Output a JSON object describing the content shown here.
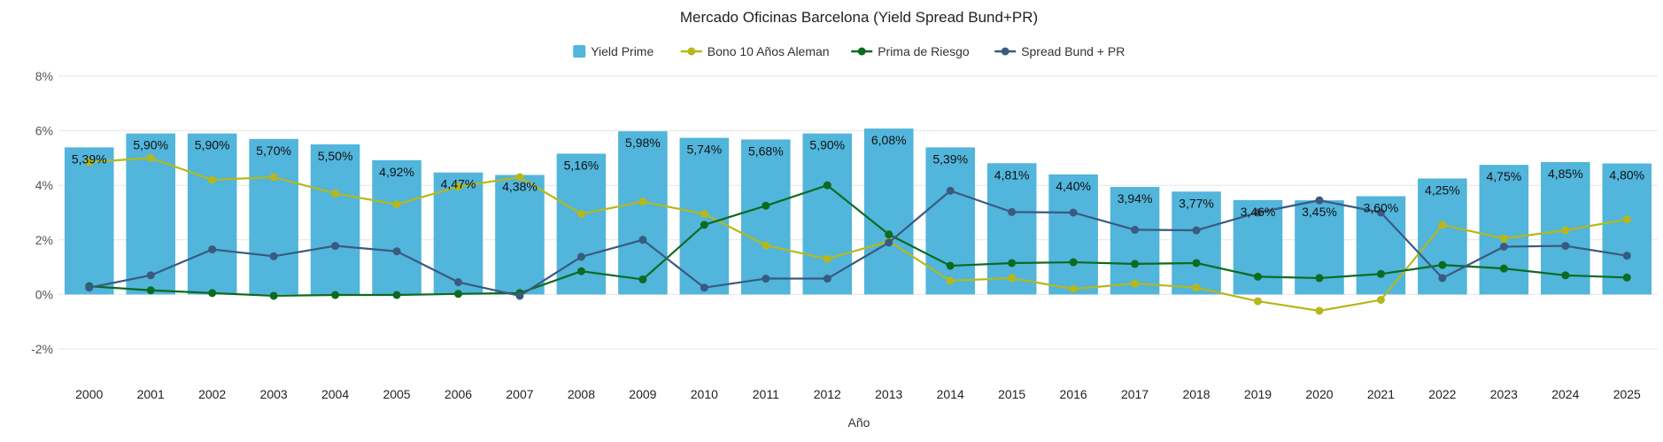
{
  "chart_data": {
    "type": "bar",
    "title": "Mercado Oficinas Barcelona (Yield Spread Bund+PR)",
    "xlabel": "Año",
    "ylabel": "",
    "ylim": [
      -2,
      8
    ],
    "yticks": [
      "-2%",
      "0%",
      "2%",
      "4%",
      "6%",
      "8%"
    ],
    "ytick_values": [
      -2,
      0,
      2,
      4,
      6,
      8
    ],
    "grid": true,
    "legend_position": "top-center",
    "categories": [
      "2000",
      "2001",
      "2002",
      "2003",
      "2004",
      "2005",
      "2006",
      "2007",
      "2008",
      "2009",
      "2010",
      "2011",
      "2012",
      "2013",
      "2014",
      "2015",
      "2016",
      "2017",
      "2018",
      "2019",
      "2020",
      "2021",
      "2022",
      "2023",
      "2024",
      "2025"
    ],
    "bar_series": {
      "name": "Yield Prime",
      "color": "#52b5db",
      "values": [
        5.39,
        5.9,
        5.9,
        5.7,
        5.5,
        4.92,
        4.47,
        4.38,
        5.16,
        5.98,
        5.74,
        5.68,
        5.9,
        6.08,
        5.39,
        4.81,
        4.4,
        3.94,
        3.77,
        3.46,
        3.45,
        3.6,
        4.25,
        4.75,
        4.85,
        4.8
      ],
      "labels": [
        "5,39%",
        "5,90%",
        "5,90%",
        "5,70%",
        "5,50%",
        "4,92%",
        "4,47%",
        "4,38%",
        "5,16%",
        "5,98%",
        "5,74%",
        "5,68%",
        "5,90%",
        "6,08%",
        "5,39%",
        "4,81%",
        "4,40%",
        "3,94%",
        "3,77%",
        "3,46%",
        "3,45%",
        "3,60%",
        "4,25%",
        "4,75%",
        "4,85%",
        "4,80%"
      ]
    },
    "line_series": [
      {
        "name": "Bono 10 Años Aleman",
        "color": "#b5b81c",
        "values": [
          4.85,
          5.0,
          4.2,
          4.3,
          3.7,
          3.3,
          3.95,
          4.3,
          2.95,
          3.4,
          2.95,
          1.8,
          1.3,
          1.95,
          0.5,
          0.6,
          0.2,
          0.4,
          0.25,
          -0.25,
          -0.6,
          -0.2,
          2.55,
          2.05,
          2.35,
          2.75
        ]
      },
      {
        "name": "Prima de Riesgo",
        "color": "#0b6b20",
        "values": [
          0.3,
          0.15,
          0.05,
          -0.05,
          -0.02,
          -0.02,
          0.02,
          0.05,
          0.85,
          0.55,
          2.55,
          3.25,
          4.0,
          2.2,
          1.05,
          1.15,
          1.18,
          1.12,
          1.15,
          0.65,
          0.6,
          0.75,
          1.08,
          0.95,
          0.7,
          0.62
        ]
      },
      {
        "name": "Spread Bund + PR",
        "color": "#3a5a80",
        "values": [
          0.25,
          0.7,
          1.65,
          1.4,
          1.78,
          1.58,
          0.45,
          -0.05,
          1.38,
          2.0,
          0.25,
          0.58,
          0.58,
          1.9,
          3.8,
          3.02,
          3.0,
          2.37,
          2.35,
          3.0,
          3.45,
          3.0,
          0.6,
          1.75,
          1.78,
          1.42
        ]
      }
    ]
  }
}
